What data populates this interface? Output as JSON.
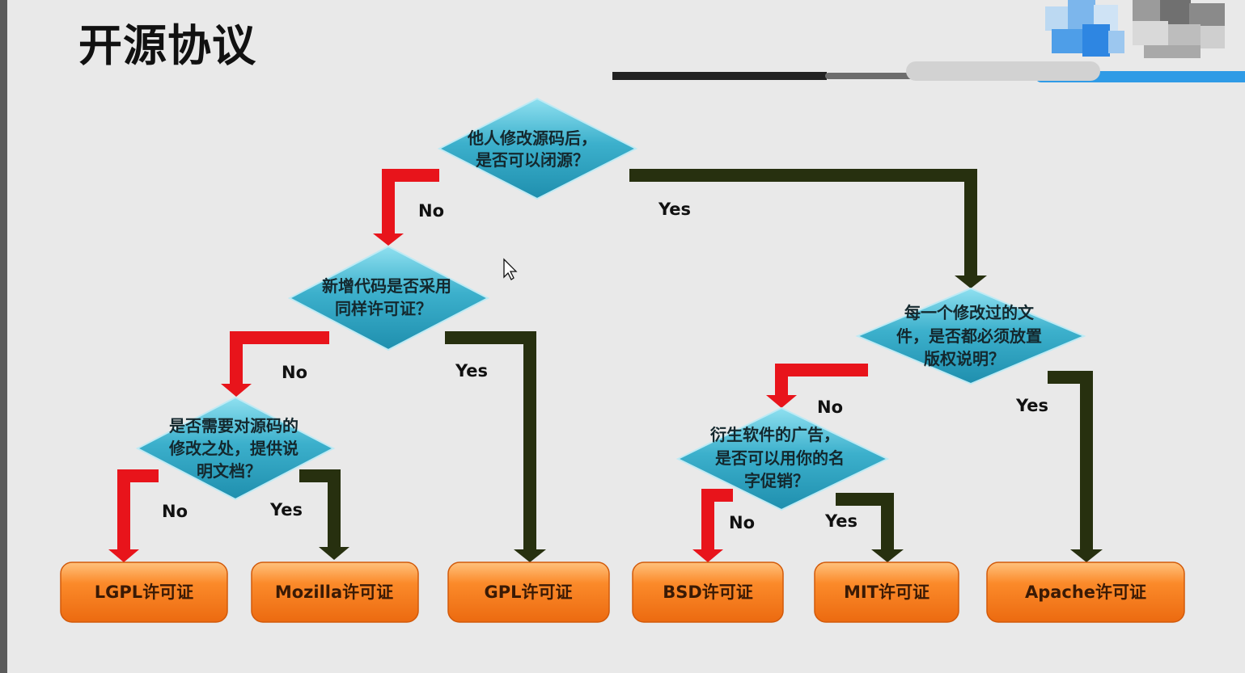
{
  "page": {
    "title": "开源协议"
  },
  "colors": {
    "background": "#e9e9e9",
    "diamond": "#3aa9c6",
    "diamond_edge": "#7fd3e6",
    "result_box": "#f47a1c",
    "result_box_light": "#ffb46a",
    "arrow_no": "#e8141b",
    "arrow_yes": "#27300f"
  },
  "decisions": [
    {
      "id": "q1",
      "lines": [
        "他人修改源码后，",
        "是否可以闭源？"
      ]
    },
    {
      "id": "q2",
      "lines": [
        "新增代码是否采用",
        "同样许可证？"
      ]
    },
    {
      "id": "q3",
      "lines": [
        "是否需要对源码的",
        "修改之处，提供说",
        "明文档？"
      ]
    },
    {
      "id": "q4",
      "lines": [
        "每一个修改过的文",
        "件，是否都必须放置",
        "版权说明？"
      ]
    },
    {
      "id": "q5",
      "lines": [
        "衍生软件的广告，",
        "是否可以用你的名",
        "字促销？"
      ]
    }
  ],
  "answers": {
    "q1_no": "No",
    "q1_yes": "Yes",
    "q2_no": "No",
    "q2_yes": "Yes",
    "q3_no": "No",
    "q3_yes": "Yes",
    "q4_no": "No",
    "q4_yes": "Yes",
    "q5_no": "No",
    "q5_yes": "Yes"
  },
  "results": [
    {
      "id": "lgpl",
      "label": "LGPL许可证"
    },
    {
      "id": "mozilla",
      "label": "Mozilla许可证"
    },
    {
      "id": "gpl",
      "label": "GPL许可证"
    },
    {
      "id": "bsd",
      "label": "BSD许可证"
    },
    {
      "id": "mit",
      "label": "MIT许可证"
    },
    {
      "id": "apache",
      "label": "Apache许可证"
    }
  ],
  "cursor": {
    "icon": "mouse-pointer-icon"
  }
}
